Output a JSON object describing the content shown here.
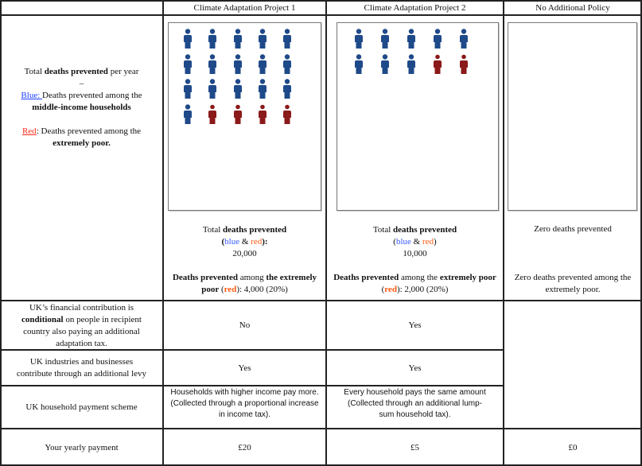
{
  "header": [
    "",
    "Climate Adaptation Project 1",
    "Climate Adaptation Project 2",
    "No Additional Policy"
  ],
  "legend": {
    "line1_pre": "Total ",
    "line1_bold": "deaths prevented",
    "line1_post": " per year",
    "dash": "–",
    "blue_label": "Blue: ",
    "blue_text": "Deaths prevented among the",
    "blue_bold": "middle-income households",
    "red_label": "Red",
    "red_text": ": Deaths prevented among the",
    "red_bold": "extremely poor."
  },
  "colors": {
    "blue_icon": "#1f4a8a",
    "red_icon": "#8b1a1a"
  },
  "projects": [
    {
      "icons": {
        "blue": 16,
        "red": 4
      },
      "total_pre": "Total ",
      "total_bold": "deaths prevented",
      "paren_open": "(",
      "blue_word": "blue",
      "amp": " & ",
      "red_word": "red",
      "paren_close": "):",
      "total_value": "20,000",
      "poor_bold1": "Deaths prevented",
      "poor_mid": " among ",
      "poor_bold2": "the extremely poor",
      "poor_paren_open": " (",
      "poor_red": "red",
      "poor_value": "): 4,000 (20%)"
    },
    {
      "icons": {
        "blue": 8,
        "red": 2
      },
      "total_pre": "Total ",
      "total_bold": "deaths prevented",
      "paren_open": "(",
      "blue_word": "blue",
      "amp": " & ",
      "red_word": "red",
      "paren_close": ")",
      "total_value": "10,000",
      "poor_bold1": "Deaths prevented",
      "poor_mid": " among the ",
      "poor_bold2": "extremely poor",
      "poor_paren_open": " (",
      "poor_red": "red",
      "poor_value": "): 2,000 (20%)"
    },
    {
      "icons": {
        "blue": 0,
        "red": 0
      },
      "total_text": "Zero deaths prevented",
      "poor_text": "Zero deaths prevented among the extremely poor."
    }
  ],
  "rows": {
    "conditional": {
      "label_pre": "UK’s financial contribution is ",
      "label_bold": "conditional",
      "label_post": " on people in recipient country also paying an additional adaptation tax.",
      "p1": "No",
      "p2": "Yes"
    },
    "levy": {
      "label": "UK industries and businesses contribute through an additional levy",
      "p1": "Yes",
      "p2": "Yes"
    },
    "scheme": {
      "label": "UK household payment scheme",
      "p1": "Households with higher income pay more. (Collected through a proportional increase in income tax).",
      "p2": "Every household pays the same amount (Collected through an additional lump-sum household tax)."
    },
    "payment": {
      "label": "Your yearly payment",
      "p1": "£20",
      "p2": "£5",
      "p3": "£0"
    }
  }
}
